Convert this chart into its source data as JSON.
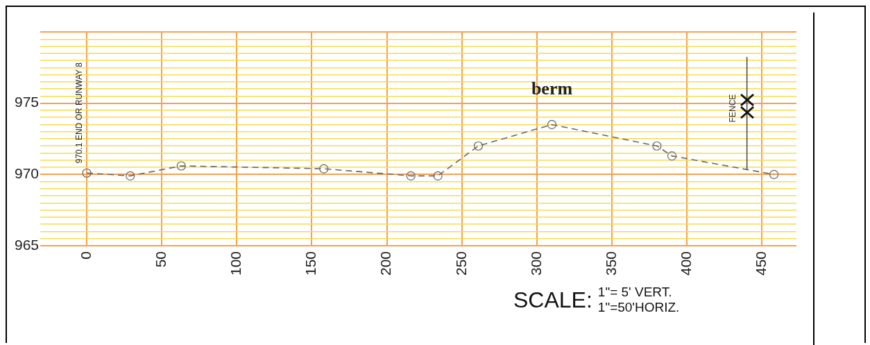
{
  "chart_data": {
    "type": "line",
    "x": [
      0,
      29,
      63,
      158,
      216,
      234,
      261,
      310,
      380,
      390,
      458
    ],
    "series": [
      {
        "color": "#666666",
        "values": [
          970.1,
          969.9,
          970.6,
          970.4,
          969.9,
          969.9,
          972.0,
          973.5,
          972.0,
          971.3,
          970.0
        ]
      }
    ],
    "xlim": [
      -31,
      473
    ],
    "xticks": [
      0,
      50,
      100,
      150,
      200,
      250,
      300,
      350,
      400,
      450
    ],
    "ylim": [
      965,
      980
    ],
    "yticks": [
      965,
      {
        "value": 965.5,
        "label": null
      },
      {
        "value": 966,
        "label": null
      },
      {
        "value": 966.5,
        "label": null
      },
      {
        "value": 967,
        "label": null
      },
      {
        "value": 967.5,
        "label": null
      },
      {
        "value": 968,
        "label": null
      },
      {
        "value": 968.5,
        "label": null
      },
      {
        "value": 969,
        "label": null
      },
      {
        "value": 969.5,
        "label": null
      },
      970,
      {
        "value": 970.5,
        "label": null
      },
      {
        "value": 971,
        "label": null
      },
      {
        "value": 971.5,
        "label": null
      },
      {
        "value": 972,
        "label": null
      },
      {
        "value": 972.5,
        "label": null
      },
      {
        "value": 973,
        "label": null
      },
      {
        "value": 973.5,
        "label": null
      },
      {
        "value": 974,
        "label": null
      },
      {
        "value": 974.5,
        "label": null
      },
      975,
      {
        "value": 975.5,
        "label": null
      },
      {
        "value": 976,
        "label": null
      },
      {
        "value": 976.5,
        "label": null
      },
      {
        "value": 977,
        "label": null
      },
      {
        "value": 977.5,
        "label": null
      },
      {
        "value": 978,
        "label": null
      },
      {
        "value": 978.5,
        "label": null
      },
      {
        "value": 979,
        "label": null
      },
      {
        "value": 979.5,
        "label": null
      },
      {
        "value": 980,
        "label": null
      }
    ],
    "grid": true,
    "marker": "circle",
    "line_style": "dashed",
    "ref_lines": [
      {
        "axis": "x",
        "value": 440,
        "label": "FENCE",
        "color": "#444444"
      }
    ],
    "annotations": [
      {
        "text": "970.1 END OR RUNWAY 8",
        "x": 0,
        "y": 970.1
      },
      {
        "text": "berm",
        "x": 310,
        "y": 973.5
      },
      "SCALE:",
      "1\"= 5' VERT.\n1\"=50'HORIZ."
    ]
  }
}
